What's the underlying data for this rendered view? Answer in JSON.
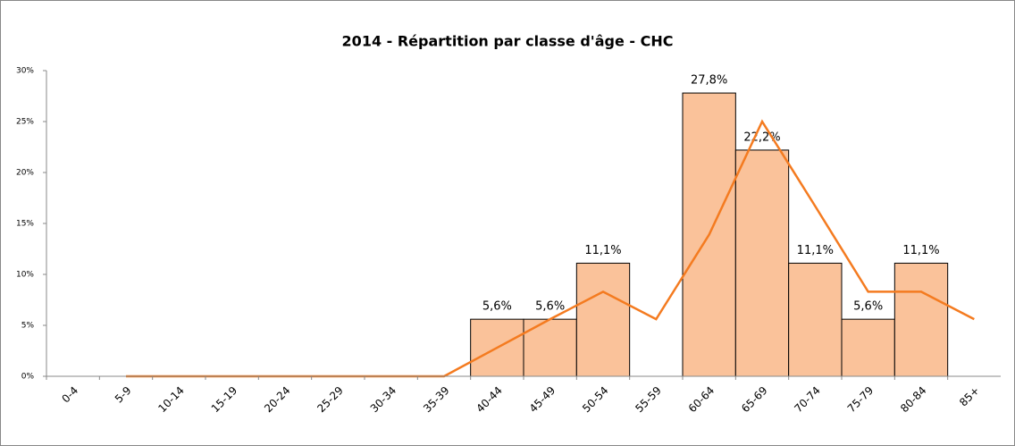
{
  "chart_data": {
    "type": "bar",
    "title": "2014 - Répartition par classe d'âge - CHC",
    "categories": [
      "0-4",
      "5-9",
      "10-14",
      "15-19",
      "20-24",
      "25-29",
      "30-34",
      "35-39",
      "40-44",
      "45-49",
      "50-54",
      "55-59",
      "60-64",
      "65-69",
      "70-74",
      "75-79",
      "80-84",
      "85+"
    ],
    "series": [
      {
        "type": "bar",
        "color": "#fac29a",
        "values": [
          0,
          0,
          0,
          0,
          0,
          0,
          0,
          0,
          5.6,
          5.6,
          11.1,
          0,
          27.8,
          22.2,
          11.1,
          5.6,
          11.1,
          0
        ],
        "value_labels": [
          null,
          null,
          null,
          null,
          null,
          null,
          null,
          null,
          "5,6%",
          "5,6%",
          "11,1%",
          null,
          "27,8%",
          "22,2%",
          "11,1%",
          "5,6%",
          "11,1%",
          null
        ]
      },
      {
        "type": "line",
        "color": "#f47b20",
        "values": [
          null,
          0,
          0,
          0,
          0,
          0,
          0,
          0,
          2.8,
          5.6,
          8.3,
          5.6,
          13.9,
          25,
          16.7,
          8.3,
          8.3,
          5.6
        ]
      }
    ],
    "ylim": [
      0,
      30
    ],
    "yticks": [
      {
        "value": 0,
        "label": "0%"
      },
      {
        "value": 5,
        "label": "5%"
      },
      {
        "value": 10,
        "label": "10%"
      },
      {
        "value": 15,
        "label": "15%"
      },
      {
        "value": 20,
        "label": "20%"
      },
      {
        "value": 25,
        "label": "25%"
      },
      {
        "value": 30,
        "label": "30%"
      }
    ]
  }
}
